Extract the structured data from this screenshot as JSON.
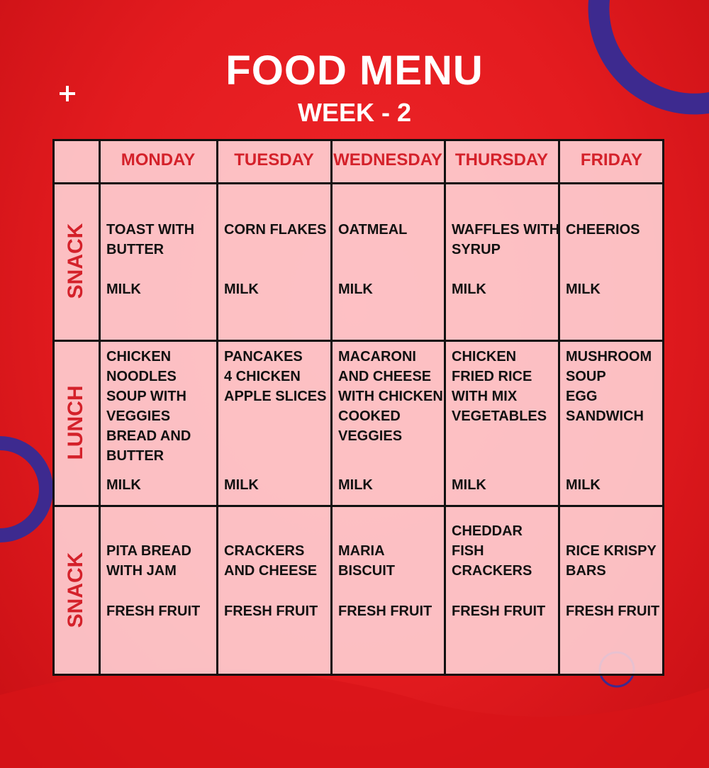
{
  "header": {
    "title": "FOOD MENU",
    "subtitle": "WEEK - 2"
  },
  "table": {
    "columns": [
      "MONDAY",
      "TUESDAY",
      "WEDNESDAY",
      "THURSDAY",
      "FRIDAY"
    ],
    "rows": [
      {
        "label": "SNACK",
        "cells": [
          {
            "items": [
              "TOAST WITH",
              "BUTTER"
            ],
            "drink": "MILK"
          },
          {
            "items": [
              "CORN FLAKES"
            ],
            "drink": "MILK"
          },
          {
            "items": [
              "OATMEAL"
            ],
            "drink": "MILK"
          },
          {
            "items": [
              "WAFFLES WITH",
              "SYRUP"
            ],
            "drink": "MILK"
          },
          {
            "items": [
              "CHEERIOS"
            ],
            "drink": "MILK"
          }
        ]
      },
      {
        "label": "LUNCH",
        "cells": [
          {
            "items": [
              "CHICKEN",
              "NOODLES",
              "SOUP WITH",
              "VEGGIES",
              "BREAD AND",
              "BUTTER"
            ],
            "drink": "MILK"
          },
          {
            "items": [
              "PANCAKES",
              "4 CHICKEN",
              "APPLE SLICES"
            ],
            "drink": "MILK"
          },
          {
            "items": [
              "MACARONI",
              "AND CHEESE",
              "WITH CHICKEN",
              "COOKED",
              "VEGGIES"
            ],
            "drink": "MILK"
          },
          {
            "items": [
              "CHICKEN",
              "FRIED RICE",
              "WITH MIX",
              "VEGETABLES"
            ],
            "drink": "MILK"
          },
          {
            "items": [
              "MUSHROOM",
              "SOUP",
              "EGG",
              "SANDWICH"
            ],
            "drink": "MILK"
          }
        ]
      },
      {
        "label": "SNACK",
        "cells": [
          {
            "items": [
              "PITA BREAD",
              "WITH JAM"
            ],
            "drink": "FRESH FRUIT"
          },
          {
            "items": [
              "CRACKERS",
              "AND CHEESE"
            ],
            "drink": "FRESH FRUIT"
          },
          {
            "items": [
              "MARIA",
              "BISCUIT"
            ],
            "drink": "FRESH FRUIT"
          },
          {
            "items": [
              "CHEDDAR",
              "FISH",
              "CRACKERS"
            ],
            "drink": "FRESH FRUIT"
          },
          {
            "items": [
              "RICE KRISPY",
              "BARS"
            ],
            "drink": "FRESH FRUIT"
          }
        ]
      }
    ]
  }
}
